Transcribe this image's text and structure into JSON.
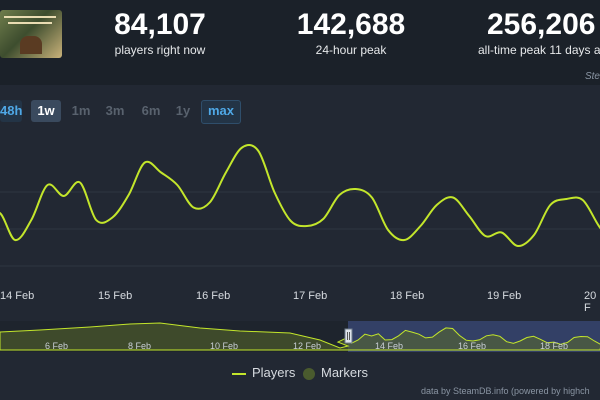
{
  "stats": {
    "now": {
      "value": "84,107",
      "label": "players right now"
    },
    "peak24": {
      "value": "142,688",
      "label": "24-hour peak"
    },
    "alltime": {
      "value": "256,206",
      "label": "all-time peak 11 days ago"
    },
    "source_fragment": "Ste"
  },
  "ranges": {
    "h48": "48h",
    "w1": "1w",
    "m1": "1m",
    "m3": "3m",
    "m6": "6m",
    "y1": "1y",
    "max": "max"
  },
  "xaxis": {
    "labels": [
      "14 Feb",
      "15 Feb",
      "16 Feb",
      "17 Feb",
      "18 Feb",
      "19 Feb",
      "20 F"
    ]
  },
  "navigator": {
    "labels": [
      "6 Feb",
      "8 Feb",
      "10 Feb",
      "12 Feb",
      "14 Feb",
      "16 Feb",
      "18 Feb"
    ]
  },
  "legend": {
    "players": "Players",
    "markers": "Markers"
  },
  "credit": "data by SteamDB.info (powered by highch",
  "colors": {
    "line": "#c3e62b",
    "background": "#222833",
    "accent": "#4fa8e6"
  },
  "chart_data": {
    "type": "line",
    "series": [
      {
        "name": "Players",
        "x": [
          "2025-02-13T18:00",
          "2025-02-13T22:00",
          "2025-02-14T02:00",
          "2025-02-14T06:00",
          "2025-02-14T10:00",
          "2025-02-14T14:00",
          "2025-02-14T18:00",
          "2025-02-14T22:00",
          "2025-02-15T02:00",
          "2025-02-15T06:00",
          "2025-02-15T10:00",
          "2025-02-15T14:00",
          "2025-02-15T18:00",
          "2025-02-15T22:00",
          "2025-02-16T02:00",
          "2025-02-16T06:00",
          "2025-02-16T10:00",
          "2025-02-16T14:00",
          "2025-02-16T18:00",
          "2025-02-16T22:00",
          "2025-02-17T02:00",
          "2025-02-17T06:00",
          "2025-02-17T10:00",
          "2025-02-17T14:00",
          "2025-02-17T18:00",
          "2025-02-17T22:00",
          "2025-02-18T02:00",
          "2025-02-18T06:00",
          "2025-02-18T10:00",
          "2025-02-18T14:00",
          "2025-02-18T18:00",
          "2025-02-18T22:00",
          "2025-02-19T02:00",
          "2025-02-19T06:00",
          "2025-02-19T10:00",
          "2025-02-19T14:00",
          "2025-02-19T18:00",
          "2025-02-19T22:00",
          "2025-02-20T02:00",
          "2025-02-20T06:00"
        ],
        "values": [
          95,
          135,
          80,
          120,
          190,
          168,
          195,
          120,
          125,
          170,
          235,
          215,
          190,
          145,
          155,
          215,
          265,
          258,
          175,
          118,
          108,
          122,
          170,
          182,
          165,
          100,
          80,
          108,
          150,
          165,
          128,
          88,
          95,
          68,
          90,
          150,
          162,
          160,
          108,
          65
        ]
      }
    ],
    "xlabel": "",
    "ylabel": "",
    "x_tick_labels": [
      "14 Feb",
      "15 Feb",
      "16 Feb",
      "17 Feb",
      "18 Feb",
      "19 Feb",
      "20 F"
    ],
    "y_scale": "relative",
    "grid": true,
    "legend_position": "bottom"
  }
}
